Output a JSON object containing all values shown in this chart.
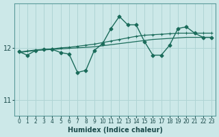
{
  "xlabel": "Humidex (Indice chaleur)",
  "bg_color": "#cce8e8",
  "grid_color": "#afd4d4",
  "line_color": "#1a6b5a",
  "xlim": [
    -0.5,
    23.5
  ],
  "ylim": [
    10.7,
    12.85
  ],
  "yticks": [
    11,
    12
  ],
  "xticks": [
    0,
    1,
    2,
    3,
    4,
    5,
    6,
    7,
    8,
    9,
    10,
    11,
    12,
    13,
    14,
    15,
    16,
    17,
    18,
    19,
    20,
    21,
    22,
    23
  ],
  "main_x": [
    0,
    1,
    2,
    3,
    4,
    5,
    6,
    7,
    8,
    9,
    10,
    11,
    12,
    13,
    14,
    15,
    16,
    17,
    18,
    19,
    20,
    21,
    22,
    23
  ],
  "main_y": [
    11.93,
    11.86,
    11.95,
    11.97,
    11.97,
    11.91,
    11.88,
    11.53,
    11.57,
    11.95,
    12.08,
    12.37,
    12.6,
    12.44,
    12.44,
    12.12,
    11.86,
    11.86,
    12.05,
    12.37,
    12.4,
    12.28,
    12.2,
    12.2
  ],
  "smooth1_x": [
    0,
    1,
    2,
    3,
    4,
    5,
    6,
    7,
    8,
    9,
    10,
    11,
    12,
    13,
    14,
    15,
    16,
    17,
    18,
    19,
    20,
    21,
    22,
    23
  ],
  "smooth1_y": [
    11.92,
    11.94,
    11.96,
    11.97,
    11.98,
    12.0,
    12.01,
    12.03,
    12.05,
    12.07,
    12.1,
    12.13,
    12.16,
    12.19,
    12.22,
    12.24,
    12.25,
    12.26,
    12.27,
    12.28,
    12.28,
    12.28,
    12.28,
    12.28
  ],
  "smooth2_x": [
    0,
    1,
    2,
    3,
    4,
    5,
    6,
    7,
    8,
    9,
    10,
    11,
    12,
    13,
    14,
    15,
    16,
    17,
    18,
    19,
    20,
    21,
    22,
    23
  ],
  "smooth2_y": [
    11.91,
    11.93,
    11.95,
    11.96,
    11.97,
    11.98,
    11.99,
    12.0,
    12.01,
    12.02,
    12.04,
    12.06,
    12.08,
    12.1,
    12.12,
    12.14,
    12.16,
    12.17,
    12.18,
    12.19,
    12.2,
    12.2,
    12.2,
    12.2
  ]
}
